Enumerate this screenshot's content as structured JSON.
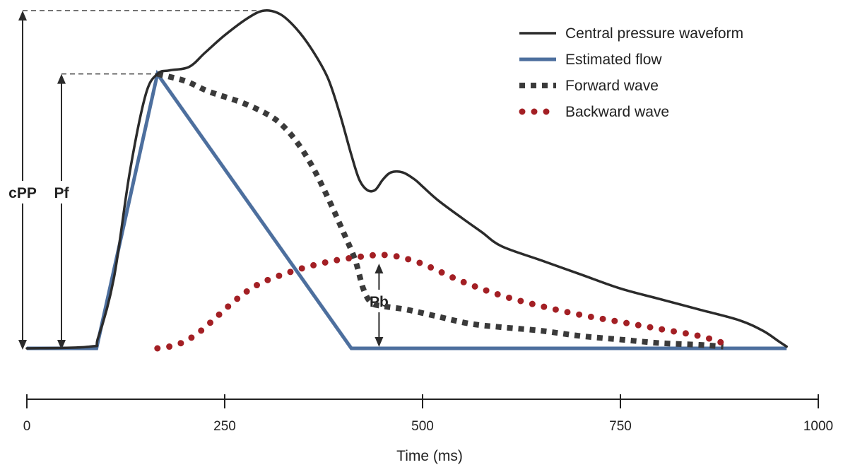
{
  "chart_data": {
    "type": "line",
    "title": "",
    "xlabel": "Time (ms)",
    "ylabel": "",
    "xlim": [
      0,
      1000
    ],
    "xticks": [
      0,
      250,
      500,
      750,
      1000
    ],
    "grid": false,
    "legend_position": "top-right",
    "series": [
      {
        "name": "Central pressure waveform",
        "style": "solid",
        "color": "#2b2b2b",
        "points": [
          [
            0,
            0
          ],
          [
            80,
            0.5
          ],
          [
            90,
            3
          ],
          [
            110,
            20
          ],
          [
            130,
            50
          ],
          [
            150,
            72
          ],
          [
            165,
            78
          ],
          [
            180,
            79
          ],
          [
            205,
            80
          ],
          [
            225,
            84
          ],
          [
            250,
            89
          ],
          [
            280,
            94
          ],
          [
            300,
            96
          ],
          [
            320,
            95
          ],
          [
            340,
            91
          ],
          [
            360,
            85
          ],
          [
            380,
            77
          ],
          [
            395,
            67
          ],
          [
            410,
            55
          ],
          [
            420,
            48
          ],
          [
            430,
            45
          ],
          [
            440,
            45
          ],
          [
            450,
            48
          ],
          [
            460,
            50
          ],
          [
            475,
            50
          ],
          [
            490,
            48
          ],
          [
            500,
            46
          ],
          [
            520,
            42
          ],
          [
            550,
            37
          ],
          [
            575,
            33
          ],
          [
            600,
            29
          ],
          [
            650,
            25
          ],
          [
            700,
            21
          ],
          [
            750,
            17
          ],
          [
            800,
            14
          ],
          [
            850,
            11
          ],
          [
            900,
            8
          ],
          [
            930,
            5
          ],
          [
            950,
            2
          ],
          [
            960,
            0.5
          ]
        ]
      },
      {
        "name": "Estimated flow",
        "style": "solid",
        "color": "#4d6f9e",
        "points": [
          [
            0,
            0
          ],
          [
            88,
            0
          ],
          [
            165,
            78
          ],
          [
            410,
            0
          ],
          [
            960,
            0
          ]
        ]
      },
      {
        "name": "Forward wave",
        "style": "square-dots",
        "color": "#3a3a3a",
        "points": [
          [
            165,
            78
          ],
          [
            200,
            76
          ],
          [
            230,
            73
          ],
          [
            270,
            70
          ],
          [
            300,
            67
          ],
          [
            320,
            64
          ],
          [
            340,
            59
          ],
          [
            360,
            52
          ],
          [
            380,
            43
          ],
          [
            400,
            33
          ],
          [
            415,
            25
          ],
          [
            425,
            17
          ],
          [
            435,
            13
          ],
          [
            450,
            12
          ],
          [
            480,
            11
          ],
          [
            520,
            9
          ],
          [
            560,
            7
          ],
          [
            600,
            6
          ],
          [
            650,
            5
          ],
          [
            700,
            3.5
          ],
          [
            750,
            2.5
          ],
          [
            800,
            1.5
          ],
          [
            850,
            1
          ],
          [
            880,
            0.5
          ]
        ]
      },
      {
        "name": "Backward wave",
        "style": "round-dots",
        "color": "#a31f24",
        "points": [
          [
            165,
            0
          ],
          [
            180,
            0.5
          ],
          [
            200,
            2
          ],
          [
            220,
            5
          ],
          [
            240,
            9
          ],
          [
            260,
            13
          ],
          [
            280,
            16.5
          ],
          [
            300,
            19
          ],
          [
            330,
            21.5
          ],
          [
            360,
            23.5
          ],
          [
            390,
            25
          ],
          [
            420,
            26
          ],
          [
            440,
            26.5
          ],
          [
            455,
            26.5
          ],
          [
            470,
            26
          ],
          [
            500,
            24
          ],
          [
            550,
            19
          ],
          [
            600,
            15
          ],
          [
            650,
            12
          ],
          [
            700,
            9.5
          ],
          [
            750,
            7.5
          ],
          [
            800,
            5.5
          ],
          [
            850,
            3.5
          ],
          [
            880,
            1.5
          ]
        ]
      }
    ],
    "annotations": [
      {
        "label": "cPP",
        "value_top": 96
      },
      {
        "label": "Pf",
        "value_top": 78
      },
      {
        "label": "Pb",
        "value_top": 26.5,
        "x": 445
      }
    ]
  },
  "colors": {
    "ink": "#2b2b2b",
    "flow": "#4d6f9e",
    "backward": "#a31f24",
    "dashed_guide": "#444444"
  }
}
